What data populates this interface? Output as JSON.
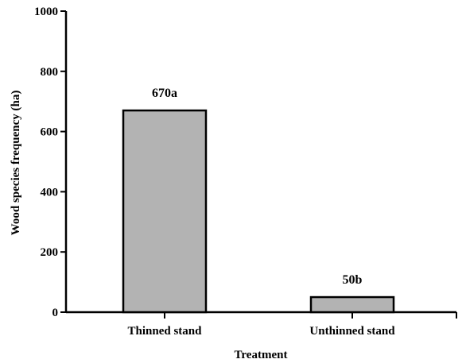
{
  "chart_data": {
    "type": "bar",
    "title": "",
    "xlabel": "Treatment",
    "ylabel": "Wood species frequency (ha)",
    "categories": [
      "Thinned stand",
      "Unthinned stand"
    ],
    "values": [
      670,
      50
    ],
    "data_labels": [
      "670a",
      "50b"
    ],
    "ylim": [
      0,
      1000
    ],
    "yticks": [
      0,
      200,
      400,
      600,
      800,
      1000
    ],
    "bar_color": "#b3b3b3",
    "bar_edge_color": "#000000",
    "grid": false,
    "legend": "none"
  }
}
